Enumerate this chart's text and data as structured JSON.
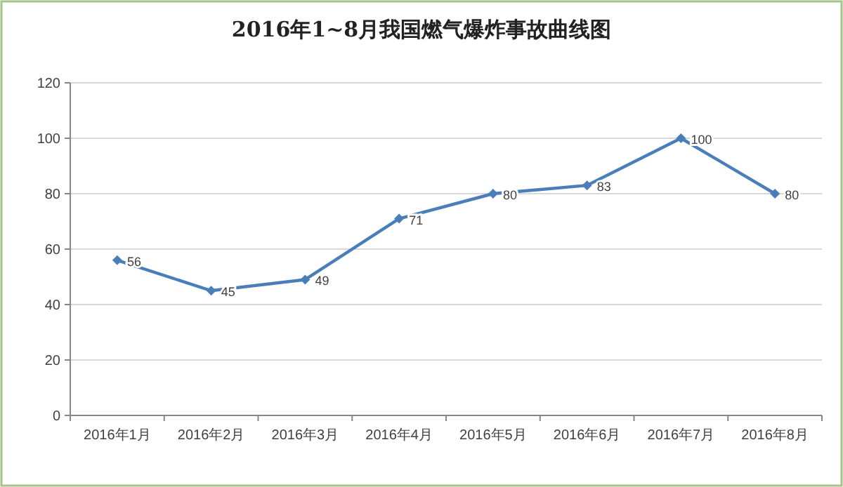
{
  "chart_data": {
    "type": "line",
    "title": "2016年1~8月我国燃气爆炸事故曲线图",
    "categories": [
      "2016年1月",
      "2016年2月",
      "2016年3月",
      "2016年4月",
      "2016年5月",
      "2016年6月",
      "2016年7月",
      "2016年8月"
    ],
    "series": [
      {
        "color": "#4a7ebb",
        "values": [
          56,
          45,
          49,
          71,
          80,
          83,
          100,
          80
        ]
      }
    ],
    "ylim": [
      0,
      120
    ],
    "yticks": [
      0,
      20,
      40,
      60,
      80,
      100,
      120
    ],
    "grid": "y",
    "marker": "diamond",
    "line_style": "solid",
    "data_labels": true
  }
}
